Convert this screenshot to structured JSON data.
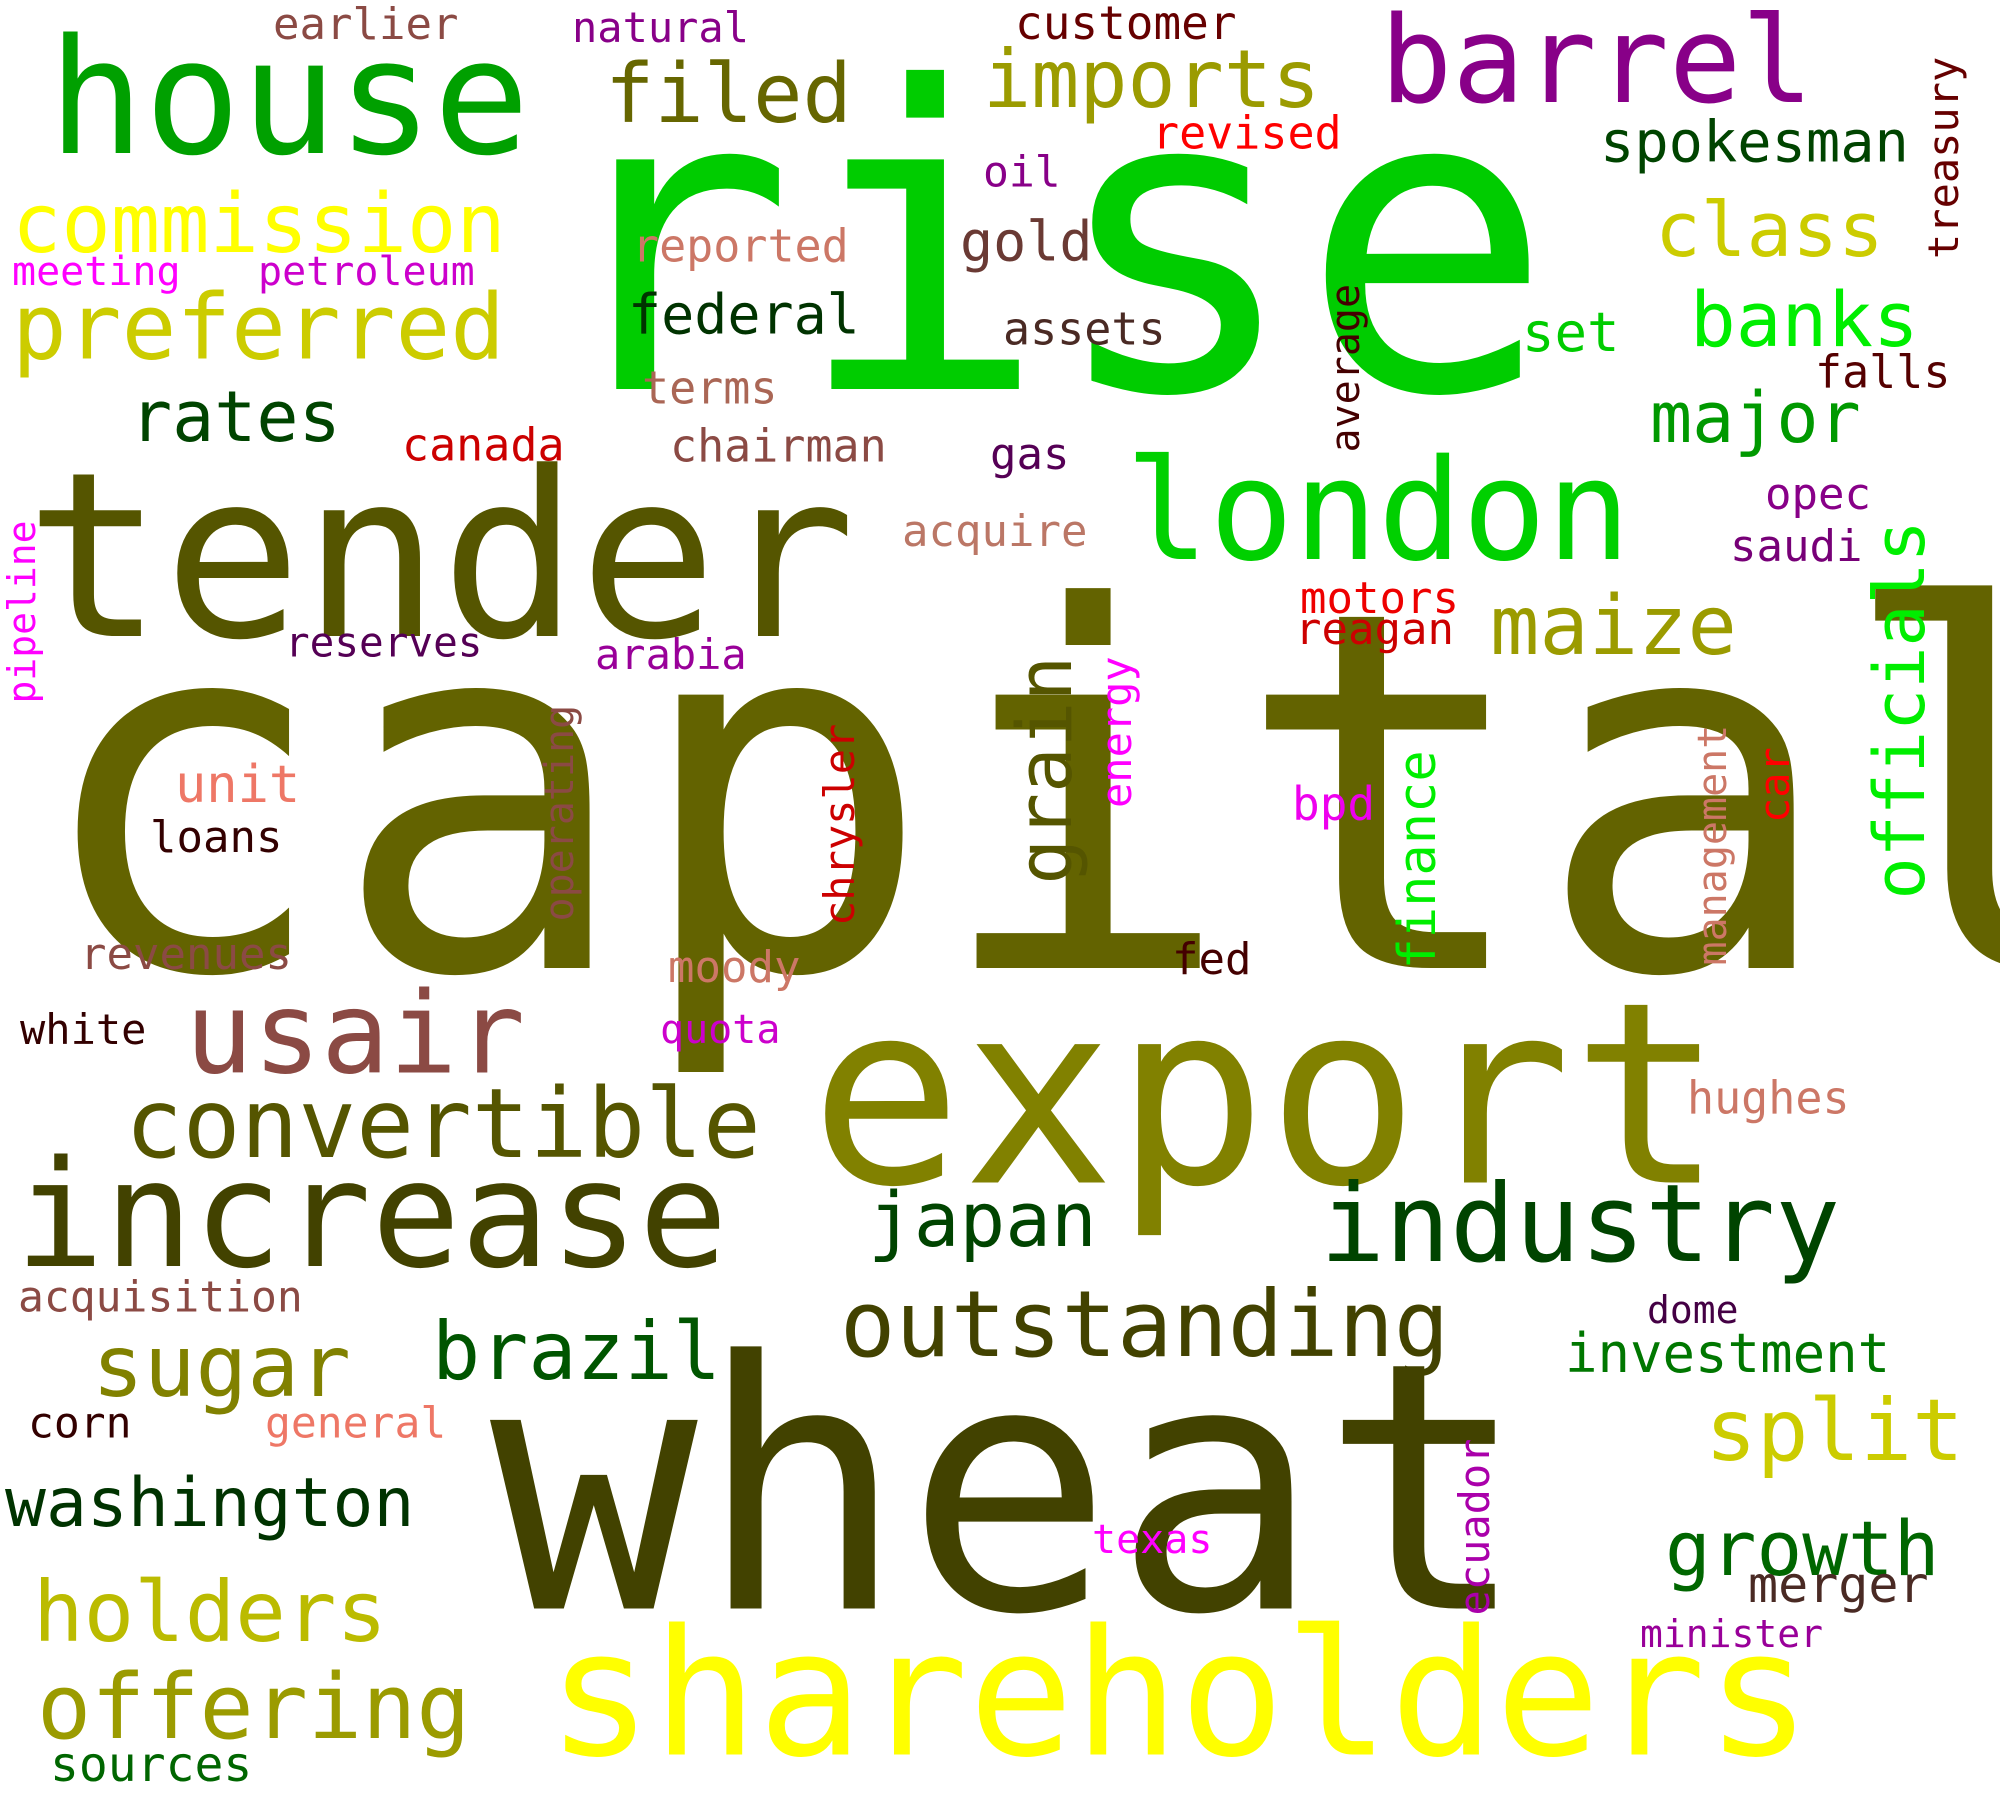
{
  "cloud": {
    "words": [
      {
        "text": "rise",
        "color": "#00cc00"
      },
      {
        "text": "capital",
        "color": "#636300"
      },
      {
        "text": "wheat",
        "color": "#424200"
      },
      {
        "text": "export",
        "color": "#818100"
      },
      {
        "text": "tender",
        "color": "#555500"
      },
      {
        "text": "shareholders",
        "color": "#ffff00"
      },
      {
        "text": "house",
        "color": "#00a000"
      },
      {
        "text": "increase",
        "color": "#424200"
      },
      {
        "text": "london",
        "color": "#00d000"
      },
      {
        "text": "industry",
        "color": "#004400"
      },
      {
        "text": "barrel",
        "color": "#880088"
      },
      {
        "text": "usair",
        "color": "#8b4a44"
      },
      {
        "text": "convertible",
        "color": "#555500"
      },
      {
        "text": "outstanding",
        "color": "#424200"
      },
      {
        "text": "preferred",
        "color": "#cccc00"
      },
      {
        "text": "commission",
        "color": "#ffff00"
      },
      {
        "text": "imports",
        "color": "#9b9b00"
      },
      {
        "text": "filed",
        "color": "#666600"
      },
      {
        "text": "maize",
        "color": "#9b9b00"
      },
      {
        "text": "sugar",
        "color": "#818100"
      },
      {
        "text": "split",
        "color": "#cccc00"
      },
      {
        "text": "offering",
        "color": "#9b9b00"
      },
      {
        "text": "holders",
        "color": "#bbbb00"
      },
      {
        "text": "washington",
        "color": "#003300"
      },
      {
        "text": "brazil",
        "color": "#005500"
      },
      {
        "text": "japan",
        "color": "#004400"
      },
      {
        "text": "growth",
        "color": "#006600"
      },
      {
        "text": "banks",
        "color": "#00ee00"
      },
      {
        "text": "class",
        "color": "#cccc00"
      },
      {
        "text": "major",
        "color": "#009900"
      },
      {
        "text": "grain",
        "color": "#555500"
      },
      {
        "text": "officials",
        "color": "#00ee00"
      },
      {
        "text": "rates",
        "color": "#004400"
      },
      {
        "text": "federal",
        "color": "#003300"
      },
      {
        "text": "spokesman",
        "color": "#004400"
      },
      {
        "text": "investment",
        "color": "#007700"
      },
      {
        "text": "finance",
        "color": "#00ee00"
      },
      {
        "text": "merger",
        "color": "#4a2a24"
      },
      {
        "text": "gold",
        "color": "#6a3a34"
      },
      {
        "text": "set",
        "color": "#00cc00"
      },
      {
        "text": "customer",
        "color": "#660000"
      },
      {
        "text": "earlier",
        "color": "#8b4a44"
      },
      {
        "text": "natural",
        "color": "#880088"
      },
      {
        "text": "revised",
        "color": "#ff0000"
      },
      {
        "text": "oil",
        "color": "#880088"
      },
      {
        "text": "reported",
        "color": "#cc7766"
      },
      {
        "text": "meeting",
        "color": "#ff00ff"
      },
      {
        "text": "petroleum",
        "color": "#cc00cc"
      },
      {
        "text": "treasury",
        "color": "#660000"
      },
      {
        "text": "assets",
        "color": "#4a2a24"
      },
      {
        "text": "terms",
        "color": "#aa6655"
      },
      {
        "text": "falls",
        "color": "#550000"
      },
      {
        "text": "average",
        "color": "#440000"
      },
      {
        "text": "canada",
        "color": "#cc0000"
      },
      {
        "text": "chairman",
        "color": "#8b4a44"
      },
      {
        "text": "gas",
        "color": "#550055"
      },
      {
        "text": "opec",
        "color": "#880088"
      },
      {
        "text": "saudi",
        "color": "#770077"
      },
      {
        "text": "acquire",
        "color": "#bb7766"
      },
      {
        "text": "pipeline",
        "color": "#ff00ff"
      },
      {
        "text": "motors",
        "color": "#ee0000"
      },
      {
        "text": "reagan",
        "color": "#cc0000"
      },
      {
        "text": "reserves",
        "color": "#550055"
      },
      {
        "text": "arabia",
        "color": "#990099"
      },
      {
        "text": "energy",
        "color": "#ff00ff"
      },
      {
        "text": "unit",
        "color": "#ee7766"
      },
      {
        "text": "operating",
        "color": "#8b4a44"
      },
      {
        "text": "chrysler",
        "color": "#cc0000"
      },
      {
        "text": "bpd",
        "color": "#ee00ee"
      },
      {
        "text": "management",
        "color": "#cc7766"
      },
      {
        "text": "car",
        "color": "#ff0000"
      },
      {
        "text": "loans",
        "color": "#330000"
      },
      {
        "text": "revenues",
        "color": "#8b4a44"
      },
      {
        "text": "fed",
        "color": "#440000"
      },
      {
        "text": "moody",
        "color": "#cc7766"
      },
      {
        "text": "white",
        "color": "#330000"
      },
      {
        "text": "quota",
        "color": "#cc00cc"
      },
      {
        "text": "hughes",
        "color": "#cc7766"
      },
      {
        "text": "acquisition",
        "color": "#8b4a44"
      },
      {
        "text": "dome",
        "color": "#440044"
      },
      {
        "text": "corn",
        "color": "#330000"
      },
      {
        "text": "general",
        "color": "#ee7766"
      },
      {
        "text": "ecuador",
        "color": "#aa00aa"
      },
      {
        "text": "texas",
        "color": "#ff00ff"
      },
      {
        "text": "minister",
        "color": "#990099"
      },
      {
        "text": "sources",
        "color": "#006600"
      }
    ]
  }
}
